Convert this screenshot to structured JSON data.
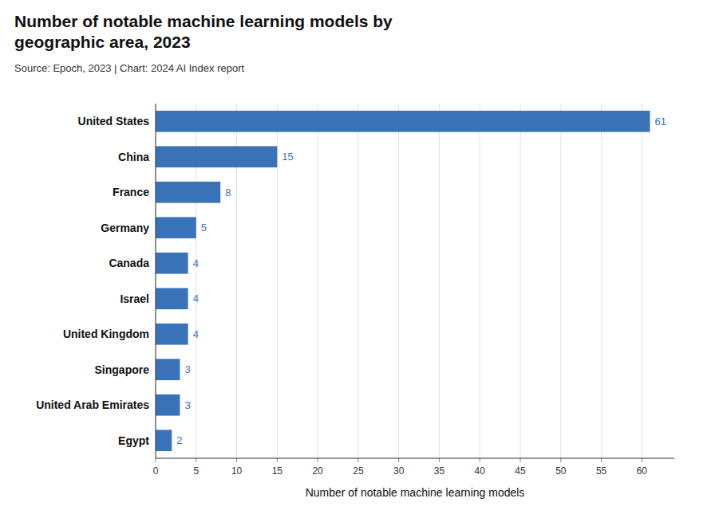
{
  "chart_data": {
    "type": "bar",
    "orientation": "horizontal",
    "title": "Number of notable machine learning models by\ngeographic area, 2023",
    "subtitle": "Source: Epoch, 2023 | Chart: 2024 AI Index report",
    "xlabel": "Number of notable machine learning models",
    "categories": [
      "United States",
      "China",
      "France",
      "Germany",
      "Canada",
      "Israel",
      "United Kingdom",
      "Singapore",
      "United Arab Emirates",
      "Egypt"
    ],
    "values": [
      61,
      15,
      8,
      5,
      4,
      4,
      4,
      3,
      3,
      2
    ],
    "color": "#3a72b8",
    "xlim": [
      0,
      64
    ],
    "xticks": [
      0,
      5,
      10,
      15,
      20,
      25,
      30,
      35,
      40,
      45,
      50,
      55,
      60
    ],
    "grid": true,
    "data_labels": true
  }
}
